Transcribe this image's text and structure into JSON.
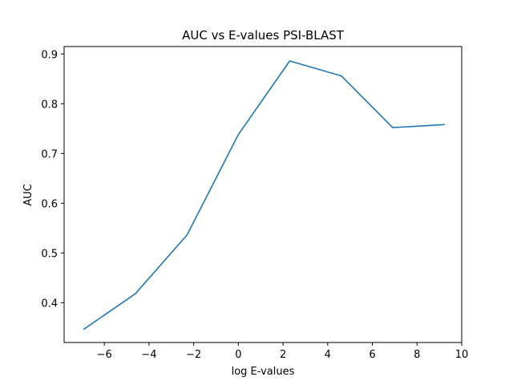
{
  "chart_data": {
    "type": "line",
    "title": "AUC vs E-values PSI-BLAST",
    "xlabel": "log E-values",
    "ylabel": "AUC",
    "xlim": [
      -7.8,
      10.0
    ],
    "ylim": [
      0.32,
      0.915
    ],
    "xticks": [
      -6,
      -4,
      -2,
      0,
      2,
      4,
      6,
      8,
      10
    ],
    "xtick_labels": [
      "−6",
      "−4",
      "−2",
      "0",
      "2",
      "4",
      "6",
      "8",
      "10"
    ],
    "yticks": [
      0.4,
      0.5,
      0.6,
      0.7,
      0.8,
      0.9
    ],
    "ytick_labels": [
      "0.4",
      "0.5",
      "0.6",
      "0.7",
      "0.8",
      "0.9"
    ],
    "grid": false,
    "series": [
      {
        "color": "#1f77b4",
        "x": [
          -6.91,
          -4.61,
          -2.3,
          0.0,
          2.3,
          4.61,
          6.91,
          9.21
        ],
        "y": [
          0.347,
          0.418,
          0.536,
          0.738,
          0.886,
          0.856,
          0.752,
          0.758
        ]
      }
    ]
  }
}
